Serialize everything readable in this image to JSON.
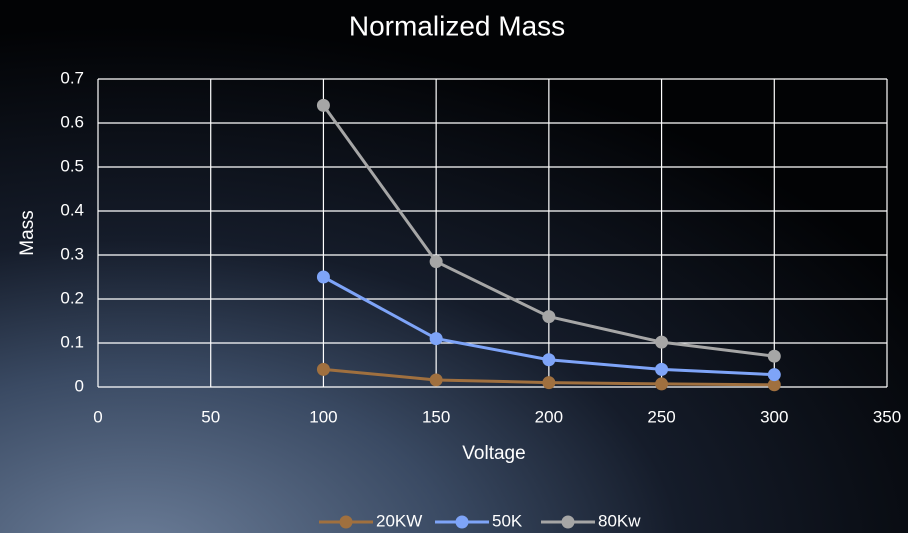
{
  "chart_data": {
    "type": "line",
    "title": "Normalized Mass",
    "x_label": "Voltage",
    "y_label": "Mass",
    "x": [
      100,
      150,
      200,
      250,
      300
    ],
    "series": [
      {
        "name": "20KW",
        "color": "#a0703f",
        "values": [
          0.04,
          0.016,
          0.01,
          0.007,
          0.005
        ]
      },
      {
        "name": "50K",
        "color": "#7ea4f8",
        "values": [
          0.25,
          0.11,
          0.062,
          0.04,
          0.028
        ]
      },
      {
        "name": "80Kw",
        "color": "#a6a6a6",
        "values": [
          0.64,
          0.285,
          0.16,
          0.102,
          0.07
        ]
      }
    ],
    "xlim": [
      0,
      350
    ],
    "xticks": [
      0,
      50,
      100,
      150,
      200,
      250,
      300,
      350
    ],
    "ylim": [
      0,
      0.7
    ],
    "yticks": [
      0,
      0.1,
      0.2,
      0.3,
      0.4,
      0.5,
      0.6,
      0.7
    ],
    "grid": true,
    "legend": "bottom"
  }
}
